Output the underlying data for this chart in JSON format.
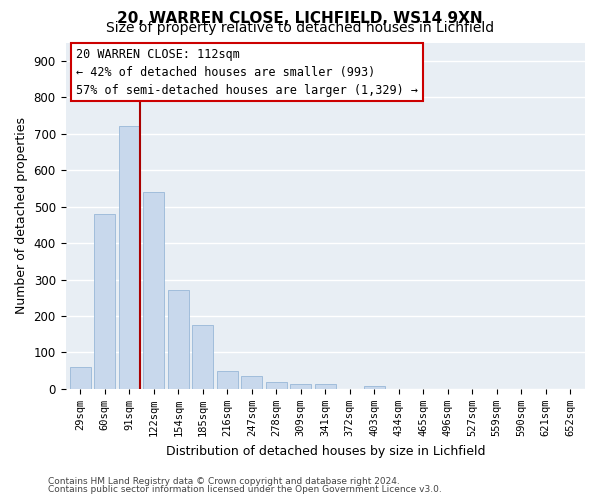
{
  "title1": "20, WARREN CLOSE, LICHFIELD, WS14 9XN",
  "title2": "Size of property relative to detached houses in Lichfield",
  "xlabel": "Distribution of detached houses by size in Lichfield",
  "ylabel": "Number of detached properties",
  "footer1": "Contains HM Land Registry data © Crown copyright and database right 2024.",
  "footer2": "Contains public sector information licensed under the Open Government Licence v3.0.",
  "bar_labels": [
    "29sqm",
    "60sqm",
    "91sqm",
    "122sqm",
    "154sqm",
    "185sqm",
    "216sqm",
    "247sqm",
    "278sqm",
    "309sqm",
    "341sqm",
    "372sqm",
    "403sqm",
    "434sqm",
    "465sqm",
    "496sqm",
    "527sqm",
    "559sqm",
    "590sqm",
    "621sqm",
    "652sqm"
  ],
  "bar_values": [
    60,
    480,
    720,
    540,
    270,
    175,
    48,
    35,
    20,
    13,
    13,
    0,
    8,
    0,
    0,
    0,
    0,
    0,
    0,
    0,
    0
  ],
  "bar_color": "#c8d8ec",
  "bar_edgecolor": "#98b8d8",
  "vline_color": "#aa0000",
  "annotation_line1": "20 WARREN CLOSE: 112sqm",
  "annotation_line2": "← 42% of detached houses are smaller (993)",
  "annotation_line3": "57% of semi-detached houses are larger (1,329) →",
  "annotation_box_color": "#cc0000",
  "ylim": [
    0,
    950
  ],
  "yticks": [
    0,
    100,
    200,
    300,
    400,
    500,
    600,
    700,
    800,
    900
  ],
  "bg_color": "#ffffff",
  "plot_bg_color": "#e8eef4",
  "grid_color": "#ffffff",
  "title1_fontsize": 11,
  "title2_fontsize": 10,
  "xlabel_fontsize": 9,
  "ylabel_fontsize": 9,
  "annotation_fontsize": 8.5
}
